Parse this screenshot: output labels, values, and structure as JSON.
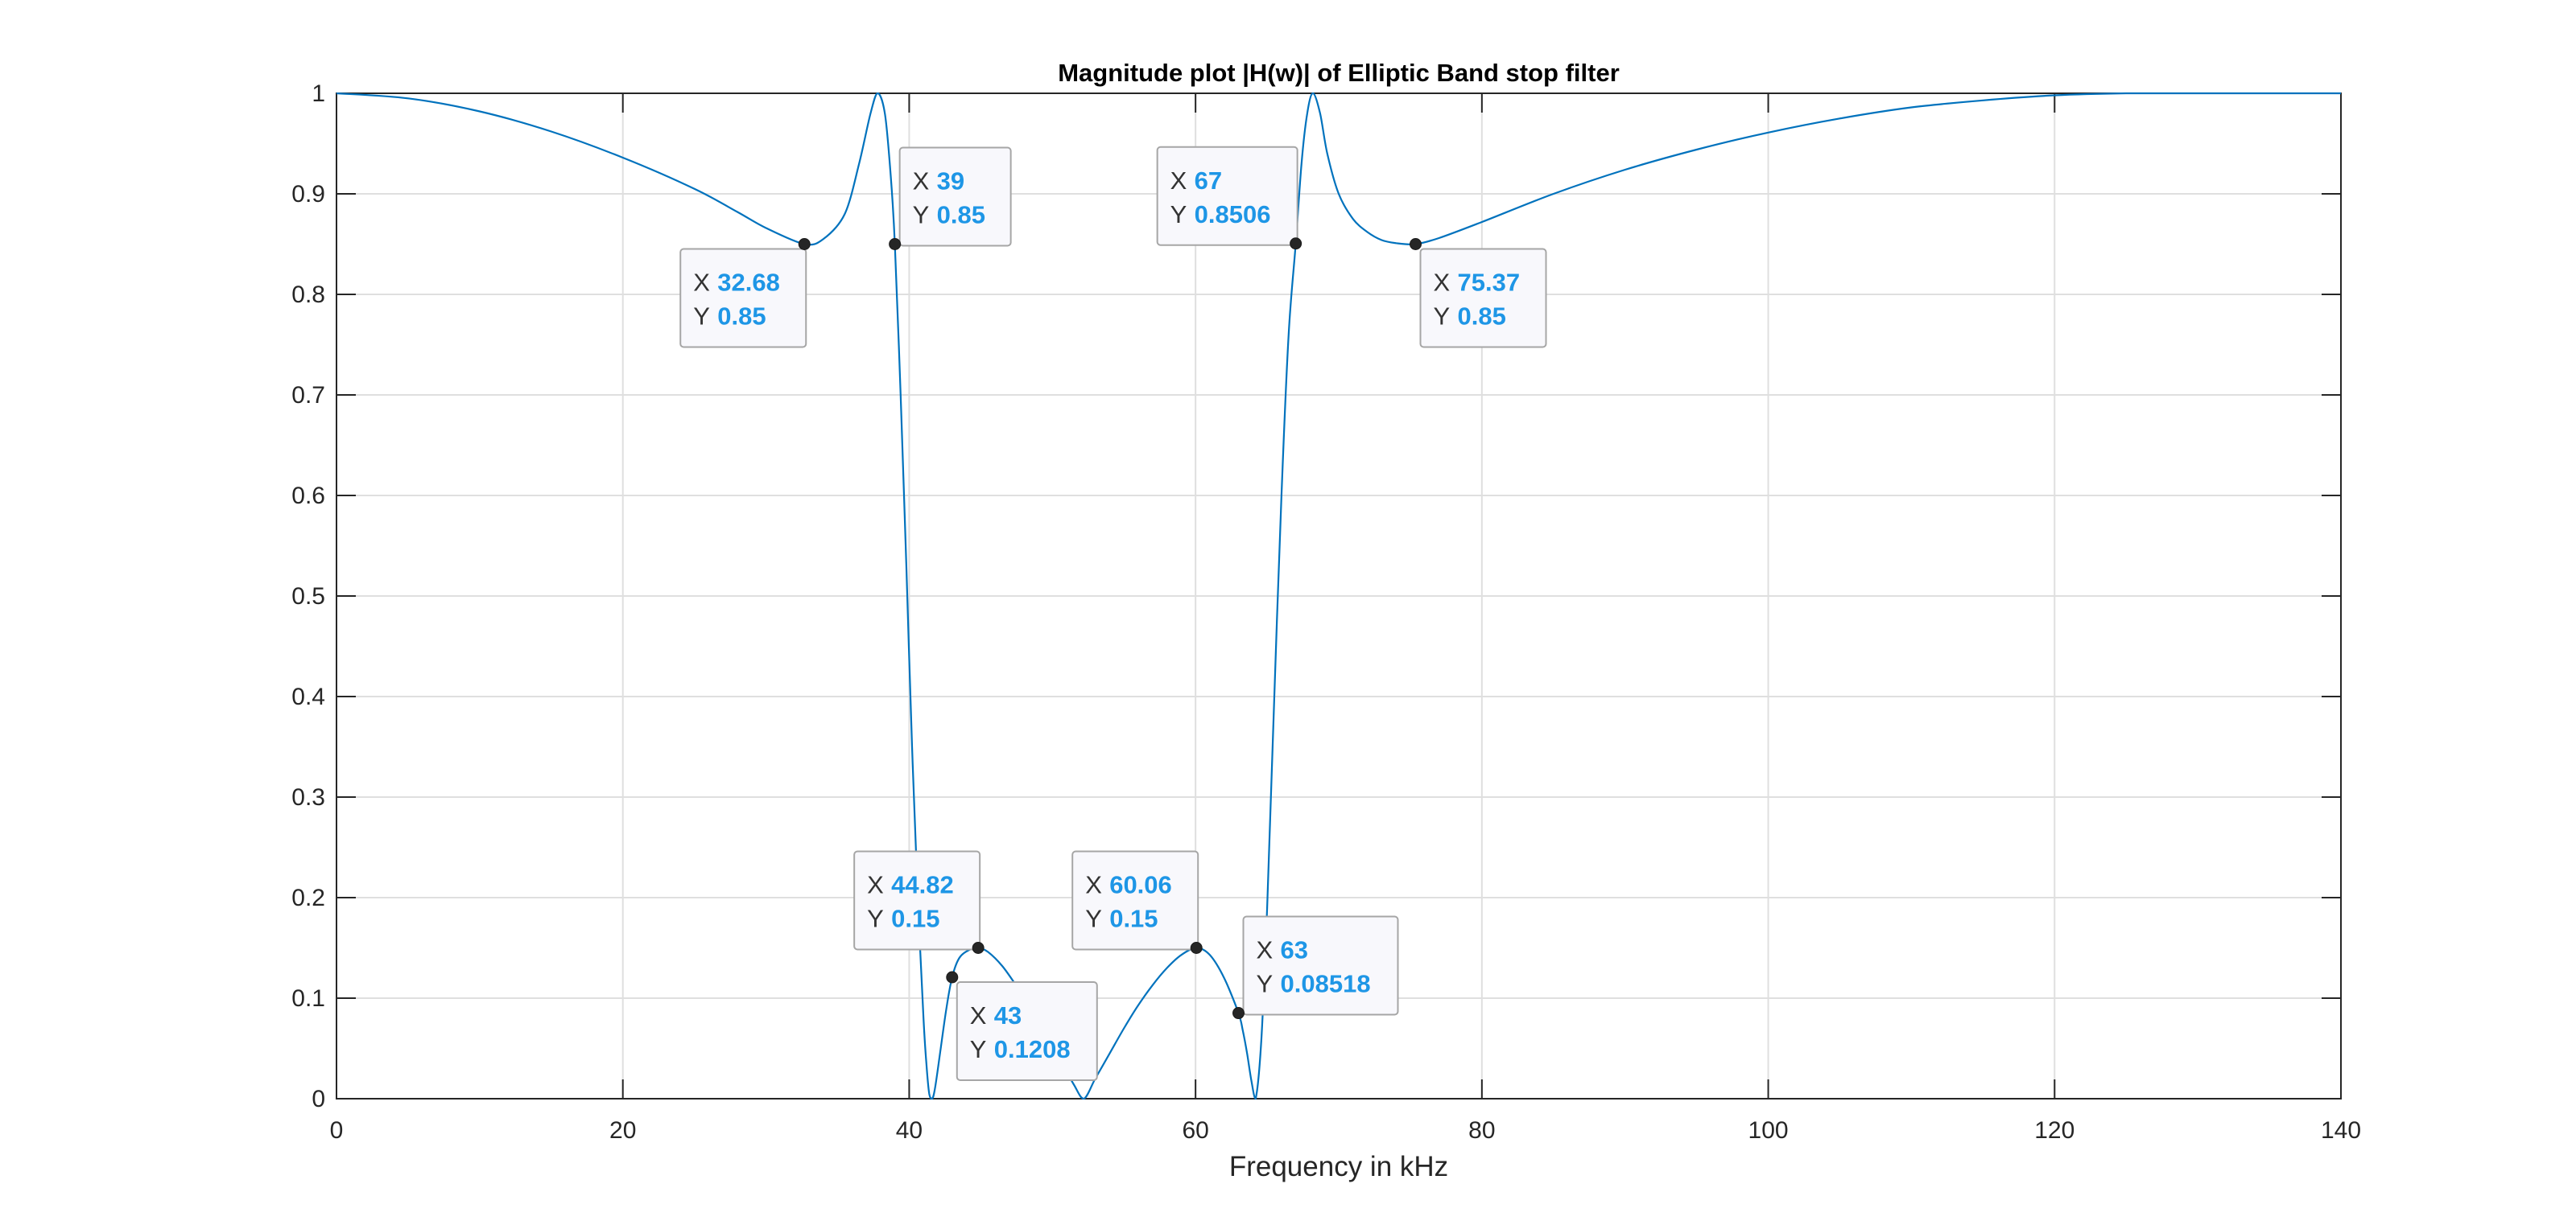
{
  "chart_data": {
    "type": "line",
    "title": "Magnitude plot |H(w)| of Elliptic Band stop filter",
    "xlabel": "Frequency in kHz",
    "ylabel": "",
    "xlim": [
      0,
      140
    ],
    "ylim": [
      0,
      1
    ],
    "xticks": [
      0,
      20,
      40,
      60,
      80,
      100,
      120,
      140
    ],
    "xtick_labels": [
      "0",
      "20",
      "40",
      "60",
      "80",
      "100",
      "120",
      "140"
    ],
    "yticks": [
      0,
      0.1,
      0.2,
      0.3,
      0.4,
      0.5,
      0.6,
      0.7,
      0.8,
      0.9,
      1
    ],
    "ytick_labels": [
      "0",
      "0.1",
      "0.2",
      "0.3",
      "0.4",
      "0.5",
      "0.6",
      "0.7",
      "0.8",
      "0.9",
      "1"
    ],
    "grid": true,
    "line_color": "#0072bd",
    "series": [
      {
        "x": [
          0,
          5,
          10,
          15,
          20,
          25,
          28,
          30,
          32.68,
          34,
          35.5,
          36.5,
          37.3,
          37.8,
          38.3,
          38.7,
          39,
          39.4,
          39.8,
          40.2,
          40.6,
          41,
          41.2,
          41.4,
          41.6,
          41.8,
          42.2,
          42.6,
          43,
          43.5,
          44.2,
          44.82,
          45.5,
          46.5,
          47.5,
          48.5,
          49.5,
          50.5,
          51.5,
          52.2,
          53,
          54,
          55,
          56,
          57,
          58,
          59,
          60.06,
          61,
          62,
          63,
          63.3,
          63.6,
          63.9,
          64.2,
          64.6,
          65,
          65.5,
          66,
          66.5,
          67,
          67.4,
          67.8,
          68.2,
          68.7,
          69.2,
          70,
          71,
          72,
          73,
          74,
          75.37,
          77,
          80,
          85,
          90,
          95,
          100,
          105,
          110,
          115,
          120,
          125,
          130,
          140
        ],
        "y": [
          1,
          0.995,
          0.982,
          0.962,
          0.936,
          0.905,
          0.882,
          0.866,
          0.85,
          0.855,
          0.88,
          0.93,
          0.98,
          1.0,
          0.98,
          0.92,
          0.85,
          0.7,
          0.53,
          0.35,
          0.2,
          0.08,
          0.035,
          0.005,
          0.0,
          0.01,
          0.05,
          0.09,
          0.1208,
          0.14,
          0.148,
          0.15,
          0.146,
          0.132,
          0.112,
          0.09,
          0.065,
          0.04,
          0.014,
          0.0,
          0.02,
          0.045,
          0.07,
          0.093,
          0.113,
          0.13,
          0.143,
          0.15,
          0.143,
          0.12,
          0.08518,
          0.068,
          0.045,
          0.018,
          0.0,
          0.06,
          0.19,
          0.4,
          0.6,
          0.76,
          0.8506,
          0.93,
          0.98,
          1.0,
          0.98,
          0.94,
          0.9,
          0.875,
          0.862,
          0.854,
          0.851,
          0.85,
          0.856,
          0.872,
          0.9,
          0.924,
          0.944,
          0.961,
          0.975,
          0.986,
          0.993,
          0.998,
          1.0,
          1.0,
          1.0
        ]
      }
    ],
    "datatips": [
      {
        "x": 32.68,
        "y": 0.85,
        "x_text": "32.68",
        "y_text": "0.85",
        "placement": "below-left"
      },
      {
        "x": 39,
        "y": 0.85,
        "x_text": "39",
        "y_text": "0.85",
        "placement": "above-right"
      },
      {
        "x": 67,
        "y": 0.8506,
        "x_text": "67",
        "y_text": "0.8506",
        "placement": "above-left"
      },
      {
        "x": 75.37,
        "y": 0.85,
        "x_text": "75.37",
        "y_text": "0.85",
        "placement": "below-right"
      },
      {
        "x": 44.82,
        "y": 0.15,
        "x_text": "44.82",
        "y_text": "0.15",
        "placement": "above-left"
      },
      {
        "x": 43,
        "y": 0.1208,
        "x_text": "43",
        "y_text": "0.1208",
        "placement": "below-right"
      },
      {
        "x": 60.06,
        "y": 0.15,
        "x_text": "60.06",
        "y_text": "0.15",
        "placement": "above-left"
      },
      {
        "x": 63,
        "y": 0.08518,
        "x_text": "63",
        "y_text": "0.08518",
        "placement": "above-right"
      }
    ],
    "datatip_key_x": "X",
    "datatip_key_y": "Y"
  }
}
